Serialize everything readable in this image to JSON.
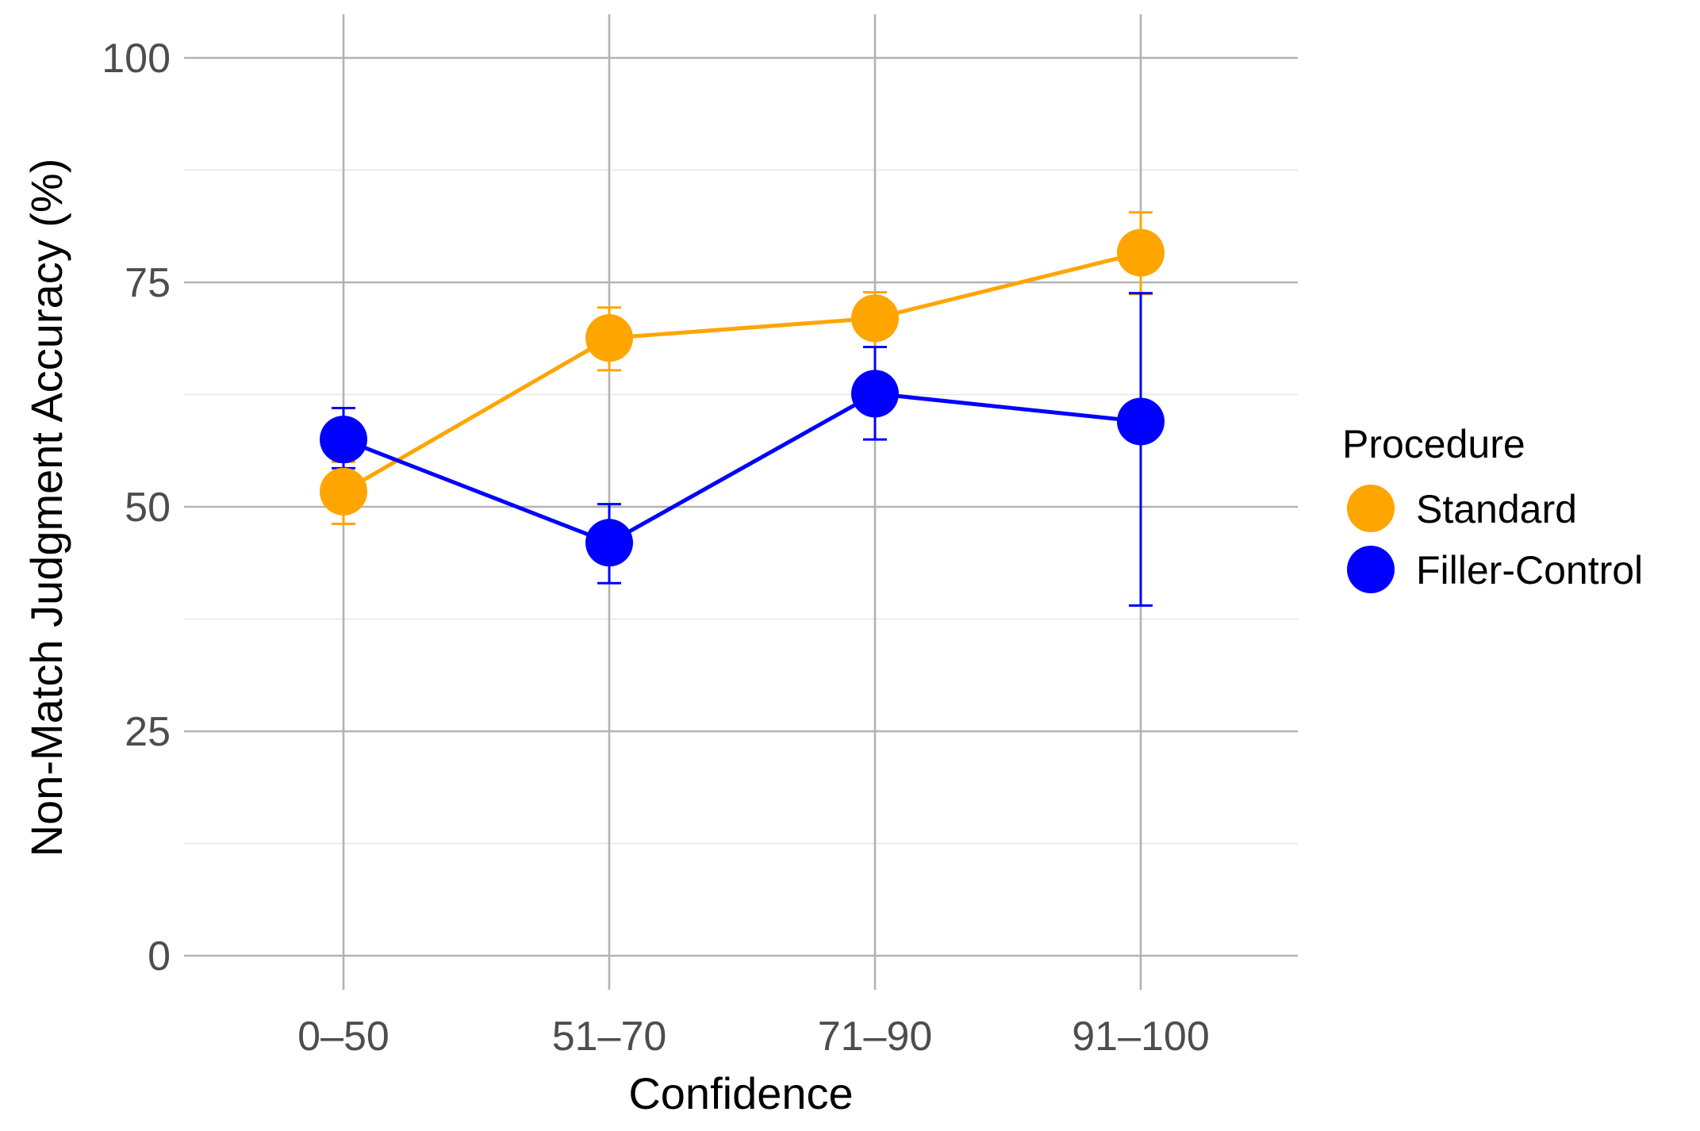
{
  "chart_data": {
    "type": "line",
    "title": "",
    "xlabel": "Confidence",
    "ylabel": "Non-Match Judgment Accuracy (%)",
    "categories": [
      "0–50",
      "51–70",
      "71–90",
      "91–100"
    ],
    "ylim": [
      0,
      100
    ],
    "yticks": [
      "0",
      "25",
      "50",
      "75",
      "100"
    ],
    "grid": true,
    "legend": {
      "title": "Procedure",
      "position": "right"
    },
    "series": [
      {
        "name": "Standard",
        "color": "#FFA500",
        "values": [
          51.7,
          68.8,
          71.0,
          78.3
        ],
        "error_low": [
          48.1,
          65.2,
          67.8,
          73.7
        ],
        "error_high": [
          55.0,
          72.2,
          73.9,
          82.8
        ]
      },
      {
        "name": "Filler-Control",
        "color": "#0000FF",
        "values": [
          57.5,
          46.0,
          62.6,
          59.5
        ],
        "error_low": [
          54.3,
          41.5,
          57.5,
          39.0
        ],
        "error_high": [
          61.0,
          50.3,
          67.8,
          73.8
        ]
      }
    ]
  }
}
